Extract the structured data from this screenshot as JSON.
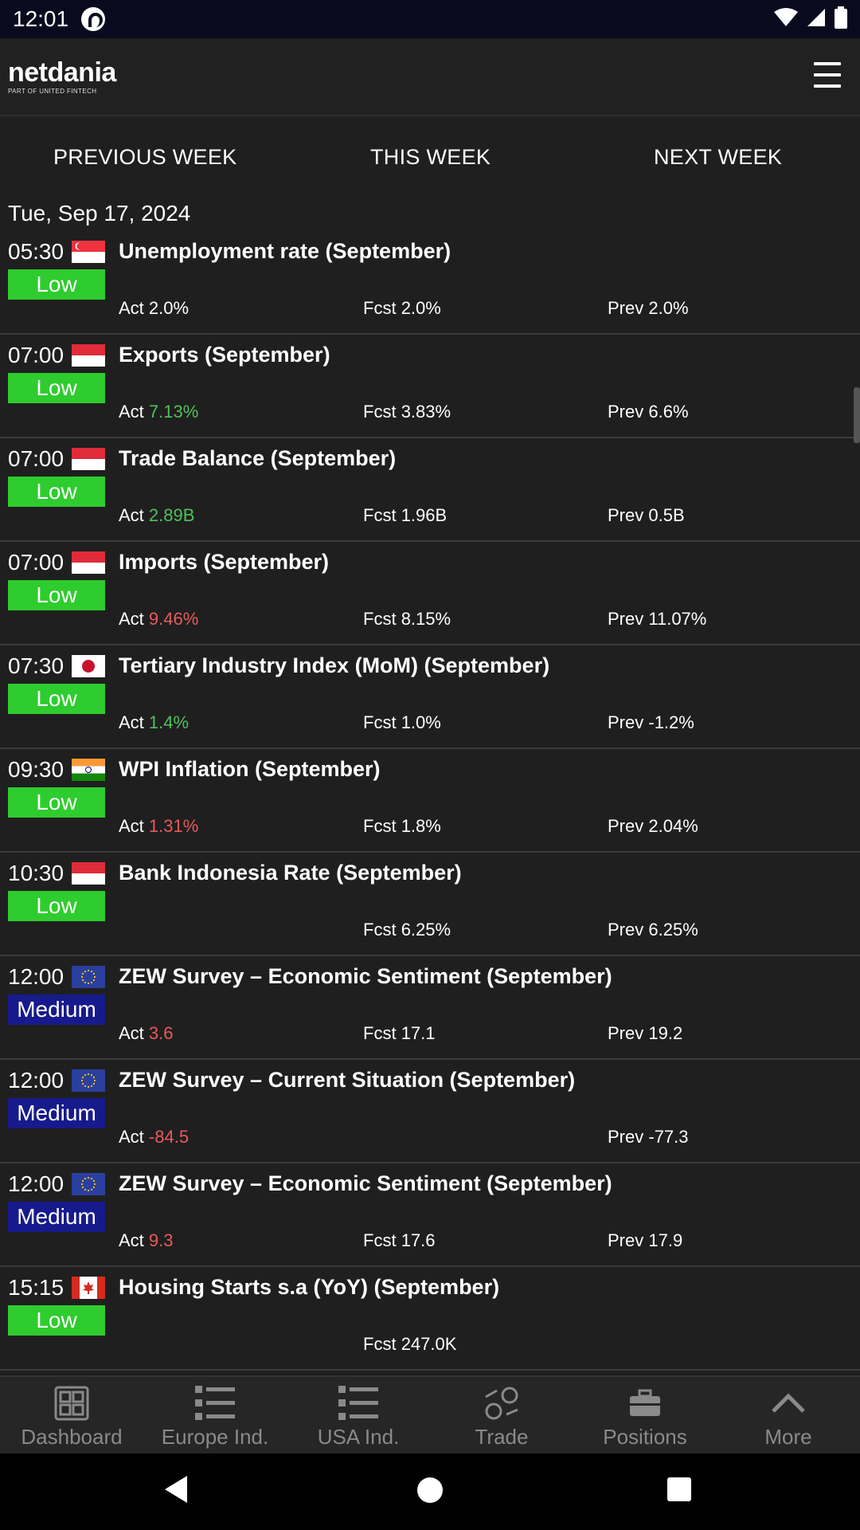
{
  "status_bar": {
    "time": "12:01"
  },
  "header": {
    "logo_main": "netdania",
    "logo_sub": "PART OF UNITED FINTECH",
    "menu_icon": "hamburger-icon"
  },
  "tabs": [
    {
      "label": "PREVIOUS WEEK"
    },
    {
      "label": "THIS WEEK"
    },
    {
      "label": "NEXT WEEK"
    }
  ],
  "date_heading": "Tue, Sep 17, 2024",
  "colors": {
    "low": "#2ecc2e",
    "medium": "#171a8c",
    "positive": "#4fc15b",
    "negative": "#ea5a5a",
    "background": "#1f1f1f"
  },
  "events": [
    {
      "time": "05:30",
      "flag": "sg",
      "impact": "Low",
      "title": "Unemployment rate (September)",
      "act_label": "Act",
      "act": "2.0%",
      "act_trend": "",
      "fcst_label": "Fcst",
      "fcst": "2.0%",
      "prev_label": "Prev",
      "prev": "2.0%"
    },
    {
      "time": "07:00",
      "flag": "id",
      "impact": "Low",
      "title": "Exports (September)",
      "act_label": "Act",
      "act": "7.13%",
      "act_trend": "pos",
      "fcst_label": "Fcst",
      "fcst": "3.83%",
      "prev_label": "Prev",
      "prev": "6.6%"
    },
    {
      "time": "07:00",
      "flag": "id",
      "impact": "Low",
      "title": "Trade Balance (September)",
      "act_label": "Act",
      "act": "2.89B",
      "act_trend": "pos",
      "fcst_label": "Fcst",
      "fcst": "1.96B",
      "prev_label": "Prev",
      "prev": "0.5B"
    },
    {
      "time": "07:00",
      "flag": "id",
      "impact": "Low",
      "title": "Imports (September)",
      "act_label": "Act",
      "act": "9.46%",
      "act_trend": "neg",
      "fcst_label": "Fcst",
      "fcst": "8.15%",
      "prev_label": "Prev",
      "prev": "11.07%"
    },
    {
      "time": "07:30",
      "flag": "jp",
      "impact": "Low",
      "title": "Tertiary Industry Index (MoM) (September)",
      "act_label": "Act",
      "act": "1.4%",
      "act_trend": "pos",
      "fcst_label": "Fcst",
      "fcst": "1.0%",
      "prev_label": "Prev",
      "prev": "-1.2%"
    },
    {
      "time": "09:30",
      "flag": "in",
      "impact": "Low",
      "title": "WPI Inflation (September)",
      "act_label": "Act",
      "act": "1.31%",
      "act_trend": "neg",
      "fcst_label": "Fcst",
      "fcst": "1.8%",
      "prev_label": "Prev",
      "prev": "2.04%"
    },
    {
      "time": "10:30",
      "flag": "id",
      "impact": "Low",
      "title": "Bank Indonesia Rate (September)",
      "act_label": "",
      "act": "",
      "act_trend": "",
      "fcst_label": "Fcst",
      "fcst": "6.25%",
      "prev_label": "Prev",
      "prev": "6.25%"
    },
    {
      "time": "12:00",
      "flag": "eu",
      "impact": "Medium",
      "title": "ZEW Survey – Economic Sentiment (September)",
      "act_label": "Act",
      "act": "3.6",
      "act_trend": "neg",
      "fcst_label": "Fcst",
      "fcst": "17.1",
      "prev_label": "Prev",
      "prev": "19.2"
    },
    {
      "time": "12:00",
      "flag": "eu",
      "impact": "Medium",
      "title": "ZEW Survey – Current Situation (September)",
      "act_label": "Act",
      "act": "-84.5",
      "act_trend": "neg",
      "fcst_label": "",
      "fcst": "",
      "prev_label": "Prev",
      "prev": "-77.3"
    },
    {
      "time": "12:00",
      "flag": "eu",
      "impact": "Medium",
      "title": "ZEW Survey – Economic Sentiment (September)",
      "act_label": "Act",
      "act": "9.3",
      "act_trend": "neg",
      "fcst_label": "Fcst",
      "fcst": "17.6",
      "prev_label": "Prev",
      "prev": "17.9"
    },
    {
      "time": "15:15",
      "flag": "ca",
      "impact": "Low",
      "title": "Housing Starts s.a (YoY) (September)",
      "act_label": "",
      "act": "",
      "act_trend": "",
      "fcst_label": "Fcst",
      "fcst": "247.0K",
      "prev_label": "",
      "prev": ""
    }
  ],
  "bottom_nav": [
    {
      "label": "Dashboard",
      "icon": "dashboard-icon"
    },
    {
      "label": "Europe Ind.",
      "icon": "list-icon"
    },
    {
      "label": "USA Ind.",
      "icon": "list-icon"
    },
    {
      "label": "Trade",
      "icon": "trade-icon"
    },
    {
      "label": "Positions",
      "icon": "briefcase-icon"
    },
    {
      "label": "More",
      "icon": "chevron-up-icon"
    }
  ]
}
